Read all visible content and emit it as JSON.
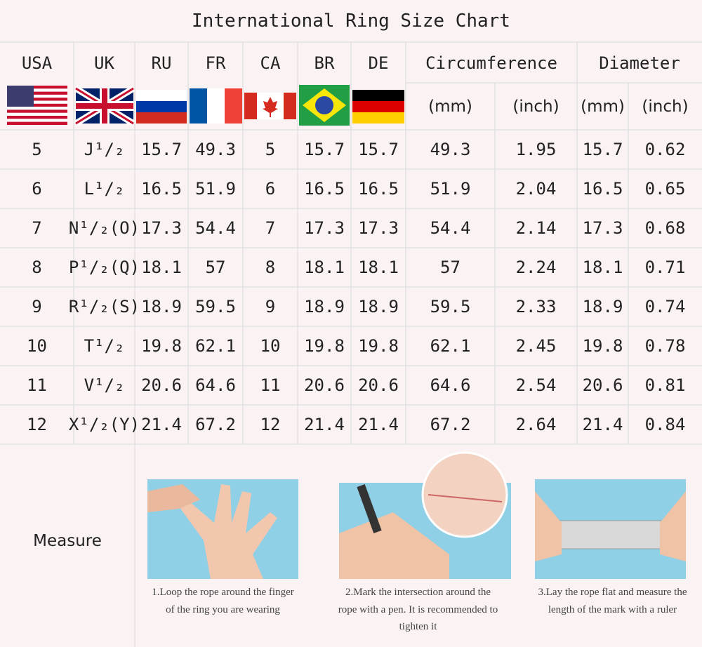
{
  "title": "International Ring Size Chart",
  "columns": [
    "USA",
    "UK",
    "RU",
    "FR",
    "CA",
    "BR",
    "DE",
    "Circumference",
    "Diameter"
  ],
  "units": [
    "(mm)",
    "(inch)",
    "(mm)",
    "(inch)"
  ],
  "rows": [
    [
      "5",
      "J¹/₂",
      "15.7",
      "49.3",
      "5",
      "15.7",
      "15.7",
      "49.3",
      "1.95",
      "15.7",
      "0.62"
    ],
    [
      "6",
      "L¹/₂",
      "16.5",
      "51.9",
      "6",
      "16.5",
      "16.5",
      "51.9",
      "2.04",
      "16.5",
      "0.65"
    ],
    [
      "7",
      "N¹/₂(O)",
      "17.3",
      "54.4",
      "7",
      "17.3",
      "17.3",
      "54.4",
      "2.14",
      "17.3",
      "0.68"
    ],
    [
      "8",
      "P¹/₂(Q)",
      "18.1",
      "57",
      "8",
      "18.1",
      "18.1",
      "57",
      "2.24",
      "18.1",
      "0.71"
    ],
    [
      "9",
      "R¹/₂(S)",
      "18.9",
      "59.5",
      "9",
      "18.9",
      "18.9",
      "59.5",
      "2.33",
      "18.9",
      "0.74"
    ],
    [
      "10",
      "T¹/₂",
      "19.8",
      "62.1",
      "10",
      "19.8",
      "19.8",
      "62.1",
      "2.45",
      "19.8",
      "0.78"
    ],
    [
      "11",
      "V¹/₂",
      "20.6",
      "64.6",
      "11",
      "20.6",
      "20.6",
      "64.6",
      "2.54",
      "20.6",
      "0.81"
    ],
    [
      "12",
      "X¹/₂(Y)",
      "21.4",
      "67.2",
      "12",
      "21.4",
      "21.4",
      "67.2",
      "2.64",
      "21.4",
      "0.84"
    ]
  ],
  "measure": {
    "label": "Measure",
    "steps": [
      "1.Loop the rope around the finger of the ring you are wearing",
      "2.Mark the intersection around the rope with a pen. It is recommended to tighten it",
      "3.Lay the rope flat and measure the length of the mark with a ruler"
    ]
  }
}
